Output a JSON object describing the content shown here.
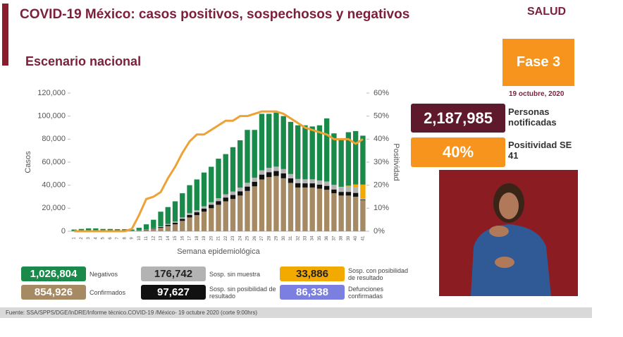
{
  "header": {
    "title": "COVID-19 México: casos positivos, sospechosos y negativos",
    "subtitle": "Escenario nacional",
    "logo": "SALUD",
    "phase": "Fase 3",
    "date": "19 octubre, 2020"
  },
  "stats": [
    {
      "value": "2,187,985",
      "label": "Personas notificadas"
    },
    {
      "value": "40%",
      "label": "Positividad SE 41"
    }
  ],
  "totals": [
    "854,926",
    "97,627",
    "176,742",
    "33,886",
    "1,026,804"
  ],
  "deaths": {
    "value": "86,338",
    "label": "Defunciones confirmadas"
  },
  "source": "Fuente: SSA/SPPS/DGE/InDRE/Informe técnico.COVID-19 /México- 19 octubre 2020 (corte 9:00hrs)",
  "chart_data": {
    "type": "bar",
    "stacked": true,
    "xlabel": "Semana epidemiológica",
    "ylabel": "Casos",
    "categories": [
      "1",
      "2",
      "3",
      "4",
      "5",
      "6",
      "7",
      "8",
      "9",
      "10",
      "11",
      "12",
      "13",
      "14",
      "15",
      "16",
      "17",
      "18",
      "19",
      "20",
      "21",
      "22",
      "23",
      "24",
      "25",
      "26",
      "27",
      "28",
      "29",
      "30",
      "31",
      "32",
      "33",
      "34",
      "35",
      "36",
      "37",
      "38",
      "39",
      "40",
      "41"
    ],
    "ylim": [
      0,
      120000
    ],
    "yticks": [
      0,
      {
        "value": 20000,
        "label": "20,000"
      },
      {
        "value": 40000,
        "label": "40,000"
      },
      {
        "value": 60000,
        "label": "60,000"
      },
      {
        "value": 80000,
        "label": "80,000"
      },
      {
        "value": 100000,
        "label": "100,000"
      },
      {
        "value": 120000,
        "label": "120,000"
      }
    ],
    "y2lim": [
      0,
      60
    ],
    "y2ticks": [
      {
        "value": 0,
        "label": "0%"
      },
      {
        "value": 10,
        "label": "10%"
      },
      {
        "value": 20,
        "label": "20%"
      },
      {
        "value": 30,
        "label": "30%"
      },
      {
        "value": 40,
        "label": "40%"
      },
      {
        "value": 50,
        "label": "50%"
      },
      {
        "value": 60,
        "label": "60%"
      }
    ],
    "series": [
      {
        "name": "Confirmados",
        "color": "#a68a64",
        "values": [
          200,
          200,
          300,
          300,
          300,
          300,
          300,
          300,
          300,
          500,
          1000,
          1800,
          3000,
          4500,
          6000,
          9000,
          12000,
          14000,
          17000,
          20000,
          23000,
          26000,
          28000,
          31000,
          35000,
          39000,
          45000,
          47000,
          48000,
          46000,
          42000,
          38000,
          38000,
          38000,
          37000,
          36000,
          33000,
          31000,
          31000,
          30000,
          27000
        ]
      },
      {
        "name": "Sosp. sin posibilidad de resultado",
        "color": "#111111",
        "values": [
          0,
          0,
          0,
          0,
          0,
          0,
          0,
          0,
          0,
          100,
          200,
          400,
          700,
          1000,
          1400,
          1800,
          2200,
          2500,
          2700,
          3000,
          3200,
          3300,
          3500,
          3700,
          3800,
          4000,
          4200,
          4300,
          4300,
          4200,
          4000,
          3800,
          3600,
          3600,
          3500,
          3400,
          3300,
          3200,
          3200,
          3300,
          500
        ]
      },
      {
        "name": "Sosp. sin muestra",
        "color": "#b3b3b3",
        "values": [
          100,
          100,
          100,
          100,
          100,
          100,
          100,
          100,
          100,
          200,
          300,
          400,
          600,
          800,
          1000,
          1200,
          1500,
          1700,
          2000,
          2200,
          2500,
          2800,
          3000,
          3200,
          3300,
          3500,
          3700,
          3800,
          3800,
          3800,
          3700,
          3600,
          3500,
          3500,
          3600,
          3800,
          4000,
          4200,
          4600,
          4800,
          1000
        ]
      },
      {
        "name": "Sosp. con posibilidad de resultado",
        "color": "#f2a900",
        "values": [
          0,
          0,
          0,
          0,
          0,
          0,
          0,
          0,
          0,
          0,
          0,
          0,
          0,
          0,
          0,
          0,
          0,
          0,
          0,
          0,
          0,
          0,
          0,
          0,
          0,
          0,
          0,
          0,
          0,
          0,
          0,
          0,
          0,
          0,
          0,
          0,
          0,
          200,
          800,
          2500,
          12000
        ]
      },
      {
        "name": "Negativos",
        "color": "#1a8a4a",
        "values": [
          1200,
          1700,
          2100,
          2100,
          1600,
          1600,
          1400,
          1400,
          1100,
          2200,
          4500,
          7400,
          12700,
          14700,
          17600,
          21000,
          24300,
          26800,
          29300,
          30800,
          34300,
          34900,
          38500,
          41100,
          45900,
          41500,
          49100,
          46900,
          46900,
          46000,
          45300,
          46600,
          46900,
          45900,
          47900,
          54800,
          44700,
          41400,
          46400,
          46400,
          42500
        ]
      },
      {
        "name": "Positividad",
        "type": "line",
        "axis": "y2",
        "color": "#eea236",
        "values": [
          0,
          0,
          0,
          0,
          0,
          0,
          0,
          0,
          1,
          7,
          14,
          15,
          17,
          23,
          28,
          34,
          39,
          42,
          42,
          44,
          46,
          48,
          48,
          50,
          50,
          51,
          52,
          52,
          52,
          51,
          49,
          47,
          45,
          44,
          43,
          42,
          40,
          40,
          40,
          38,
          40
        ]
      }
    ],
    "deaths_color": "#7b7fe0"
  }
}
